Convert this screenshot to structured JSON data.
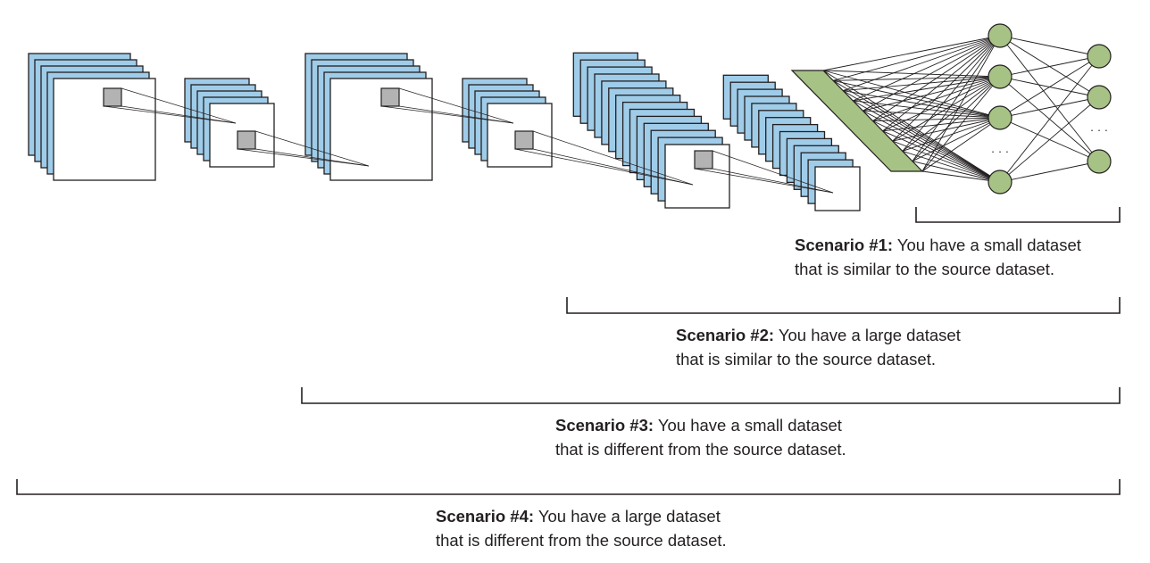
{
  "colors": {
    "feature_map_fill": "#9fcce9",
    "front_map_fill": "#ffffff",
    "patch_fill": "#b3b3b3",
    "flatten_fill": "#a6c285",
    "node_fill": "#a6c285",
    "ink": "#231f20"
  },
  "dense": {
    "hidden_ellipsis": "· · ·",
    "output_ellipsis": "· · ·"
  },
  "scenarios": [
    {
      "label": "Scenario #1:",
      "line1": "You have a small dataset",
      "line2": "that is similar to the source dataset."
    },
    {
      "label": "Scenario #2:",
      "line1": "You have a large dataset",
      "line2": "that is similar to the source dataset."
    },
    {
      "label": "Scenario #3:",
      "line1": "You have a small dataset",
      "line2": "that is different from the source dataset."
    },
    {
      "label": "Scenario #4:",
      "line1": "You have a large dataset",
      "line2": "that is different from the source dataset."
    }
  ]
}
